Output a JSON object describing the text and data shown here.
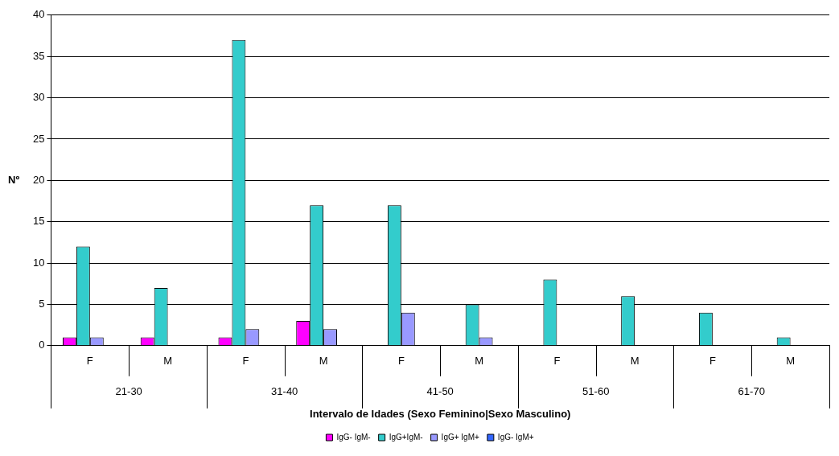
{
  "chart_data": {
    "type": "bar",
    "xlabel": "Intervalo de Idades (Sexo Feminino|Sexo Masculino)",
    "ylabel": "Nº",
    "categories": [
      "F",
      "M",
      "F",
      "M",
      "F",
      "M",
      "F",
      "M",
      "F",
      "M"
    ],
    "annotations": [
      "21-30",
      "31-40",
      "41-50",
      "51-60",
      "61-70"
    ],
    "series": [
      {
        "name": "IgG- IgM-",
        "color": "#ff00ff",
        "values": [
          1,
          1,
          1,
          3,
          0,
          0,
          0,
          0,
          0,
          0
        ]
      },
      {
        "name": "IgG+IgM-",
        "color": "#33cccc",
        "values": [
          12,
          7,
          37,
          17,
          17,
          5,
          8,
          6,
          4,
          1
        ]
      },
      {
        "name": "IgG+ IgM+",
        "color": "#9999ff",
        "values": [
          1,
          0,
          2,
          2,
          4,
          1,
          0,
          0,
          0,
          0
        ]
      },
      {
        "name": "IgG- IgM+",
        "color": "#3366ff",
        "values": [
          0,
          0,
          0,
          0,
          0,
          0,
          0,
          0,
          0,
          0
        ]
      }
    ],
    "ylim": [
      0,
      40
    ],
    "yticks": [
      0,
      5,
      10,
      15,
      20,
      25,
      30,
      35,
      40
    ],
    "grid": "y",
    "legend": "bottom"
  }
}
